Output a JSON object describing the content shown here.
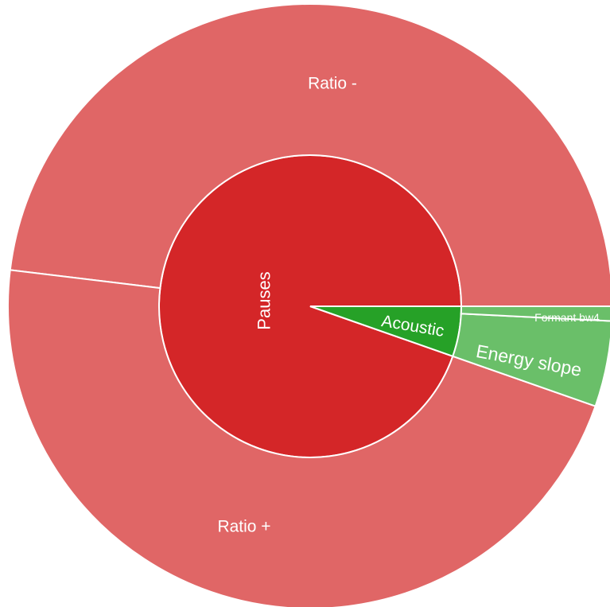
{
  "chart_data": {
    "type": "sunburst",
    "unit": "degrees",
    "inner": [
      {
        "label": "Pauses",
        "value": 340.7,
        "color": "#d42628"
      },
      {
        "label": "Acoustic",
        "value": 19.3,
        "color": "#26a127"
      }
    ],
    "outer": [
      {
        "label": "Ratio -",
        "parent": "Pauses",
        "value": 173.1,
        "color": "#e06666"
      },
      {
        "label": "Ratio +",
        "parent": "Pauses",
        "value": 167.6,
        "color": "#e06666"
      },
      {
        "label": "Energy slope",
        "parent": "Acoustic",
        "value": 16.5,
        "color": "#6abf69"
      },
      {
        "label": "Formant bw4",
        "parent": "Acoustic",
        "value": 2.8,
        "color": "#6abf69"
      }
    ]
  }
}
